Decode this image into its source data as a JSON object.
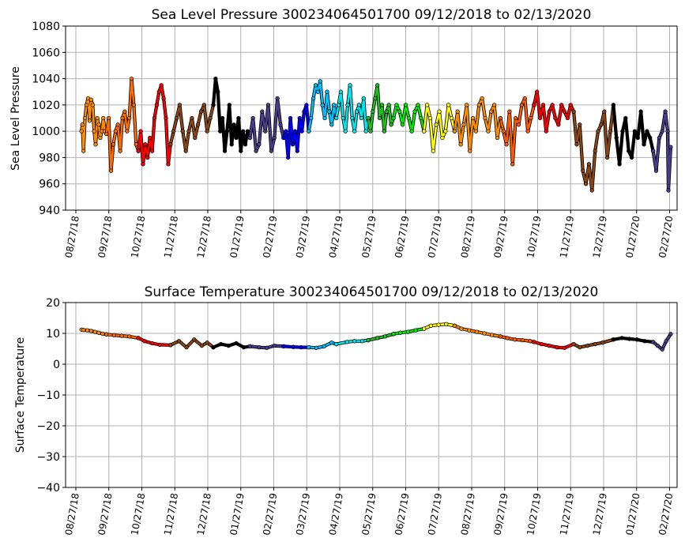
{
  "chart_data": [
    {
      "type": "scatter",
      "title": "Sea Level Pressure 300234064501700  09/12/2018 to 02/13/2020",
      "xlabel": "",
      "ylabel": "Sea Level Pressure",
      "ylim": [
        940,
        1080
      ],
      "yticks": [
        940,
        960,
        980,
        1000,
        1020,
        1040,
        1060,
        1080
      ],
      "xticks": [
        "08/27/18",
        "09/27/18",
        "10/27/18",
        "11/27/18",
        "12/27/18",
        "01/27/19",
        "02/27/19",
        "03/27/19",
        "04/27/19",
        "05/27/19",
        "06/27/19",
        "07/27/19",
        "08/27/19",
        "09/27/19",
        "10/27/19",
        "11/27/19",
        "12/27/19",
        "01/27/20",
        "02/27/20"
      ],
      "grid": true,
      "series": [
        {
          "color": "#ff8c00",
          "x": [
            0.75,
            0.85,
            1.0,
            1.2,
            1.4,
            1.6,
            1.8,
            2.0,
            2.2,
            2.4,
            2.6,
            2.8,
            3.0,
            3.2,
            3.4,
            3.6,
            3.8,
            4.0
          ],
          "y": [
            1000,
            1005,
            985,
            1010,
            1020,
            1025,
            1008,
            1024,
            1020,
            1000,
            990,
            1010,
            1005,
            995,
            1000,
            1010,
            1000,
            998
          ]
        },
        {
          "color": "#ff6a00",
          "x": [
            4.0,
            4.3,
            4.6,
            4.9,
            5.2,
            5.5,
            5.8,
            6.1,
            6.4,
            6.7,
            7.0,
            7.3,
            7.6,
            7.9,
            8.2
          ],
          "y": [
            998,
            1010,
            970,
            990,
            1000,
            1005,
            985,
            1010,
            1015,
            1000,
            1010,
            1040,
            1020,
            990,
            985
          ]
        },
        {
          "color": "#ff0000",
          "x": [
            8.2,
            8.5,
            8.8,
            9.1,
            9.4,
            9.7,
            10.0,
            10.3,
            10.6,
            10.9,
            11.2,
            11.5,
            11.8,
            12.1,
            12.4
          ],
          "y": [
            985,
            1000,
            975,
            990,
            980,
            995,
            985,
            1010,
            1020,
            1030,
            1035,
            1025,
            1010,
            975,
            990
          ]
        },
        {
          "color": "#8b4513",
          "x": [
            12.4,
            12.8,
            13.2,
            13.6,
            14.0,
            14.4,
            14.8,
            15.2,
            15.6,
            16.0,
            16.4,
            16.8,
            17.2,
            17.6,
            18.0
          ],
          "y": [
            990,
            1000,
            1010,
            1020,
            1000,
            985,
            1000,
            1010,
            995,
            1005,
            1015,
            1020,
            1000,
            1010,
            1020
          ]
        },
        {
          "color": "#000000",
          "x": [
            18.0,
            18.3,
            18.6,
            18.9,
            19.2,
            19.5,
            19.8,
            20.1,
            20.4,
            20.7,
            21.0,
            21.3,
            21.6,
            21.9,
            22.2,
            22.5,
            22.8
          ],
          "y": [
            1020,
            1040,
            1030,
            1000,
            1010,
            985,
            1000,
            1020,
            990,
            1005,
            995,
            1010,
            985,
            1000,
            990,
            1000,
            995
          ]
        },
        {
          "color": "#483d8b",
          "x": [
            22.8,
            23.2,
            23.6,
            24.0,
            24.4,
            24.8,
            25.2,
            25.6,
            26.0,
            26.4,
            26.8,
            27.2
          ],
          "y": [
            995,
            1010,
            985,
            990,
            1015,
            1000,
            1020,
            985,
            995,
            1025,
            1005,
            995
          ]
        },
        {
          "color": "#0000ff",
          "x": [
            27.2,
            27.5,
            27.8,
            28.1,
            28.4,
            28.7,
            29.0,
            29.3,
            29.6,
            29.9,
            30.2,
            30.5
          ],
          "y": [
            995,
            1000,
            980,
            1010,
            990,
            1000,
            985,
            1010,
            1000,
            1015,
            1020,
            1000
          ]
        },
        {
          "color": "#00bfff",
          "x": [
            30.5,
            30.8,
            31.1,
            31.4,
            31.7,
            32.0,
            32.3,
            32.6,
            32.9,
            33.2,
            33.5,
            33.8,
            34.1
          ],
          "y": [
            1000,
            1010,
            1025,
            1035,
            1030,
            1038,
            1020,
            1010,
            1030,
            1015,
            1005,
            1020,
            1010
          ]
        },
        {
          "color": "#00e5ee",
          "x": [
            34.1,
            34.4,
            34.7,
            35.0,
            35.3,
            35.6,
            35.9,
            36.2,
            36.5,
            36.8,
            37.1,
            37.4,
            37.7,
            38.0,
            38.3
          ],
          "y": [
            1010,
            1020,
            1030,
            1010,
            1000,
            1020,
            1035,
            1010,
            1000,
            1015,
            1020,
            1010,
            1025,
            1000,
            1010
          ]
        },
        {
          "color": "#22bb22",
          "x": [
            38.3,
            38.6,
            38.9,
            39.2,
            39.5,
            39.8,
            40.1,
            40.4,
            40.7,
            41.0,
            41.3,
            41.6
          ],
          "y": [
            1010,
            1000,
            1015,
            1025,
            1035,
            1010,
            1020,
            1000,
            1015,
            1020,
            1005,
            1010
          ]
        },
        {
          "color": "#00ee00",
          "x": [
            41.6,
            42.0,
            42.4,
            42.8,
            43.2,
            43.6,
            44.0,
            44.4,
            44.8,
            45.2,
            45.6
          ],
          "y": [
            1010,
            1020,
            1015,
            1005,
            1020,
            1010,
            1000,
            1015,
            1020,
            1010,
            1000
          ]
        },
        {
          "color": "#ffff00",
          "x": [
            45.6,
            46.0,
            46.4,
            46.8,
            47.2,
            47.6,
            48.0,
            48.4,
            48.8,
            49.2,
            49.6
          ],
          "y": [
            1000,
            1020,
            1010,
            985,
            1005,
            1015,
            995,
            1000,
            1020,
            1010,
            1000
          ]
        },
        {
          "color": "#ff8c00",
          "x": [
            49.6,
            50.0,
            50.4,
            50.8,
            51.2,
            51.6,
            52.0,
            52.4,
            52.8,
            53.2,
            53.6,
            54.0,
            54.4,
            54.8,
            55.2,
            55.6
          ],
          "y": [
            1000,
            1015,
            990,
            1005,
            1020,
            985,
            1010,
            1000,
            1020,
            1025,
            1010,
            1000,
            1015,
            1020,
            995,
            1010
          ]
        },
        {
          "color": "#ff5a00",
          "x": [
            55.6,
            56.0,
            56.4,
            56.8,
            57.2,
            57.6,
            58.0,
            58.4,
            58.8,
            59.2,
            59.6,
            60.0
          ],
          "y": [
            1010,
            1000,
            990,
            1015,
            975,
            1010,
            1005,
            1020,
            1025,
            1000,
            1010,
            1020
          ]
        },
        {
          "color": "#ff0000",
          "x": [
            60.0,
            60.4,
            60.8,
            61.2,
            61.6,
            62.0,
            62.4,
            62.8,
            63.2,
            63.6,
            64.0,
            64.4,
            64.8,
            65.2
          ],
          "y": [
            1020,
            1030,
            1010,
            1020,
            1000,
            1015,
            1020,
            1010,
            1005,
            1020,
            1015,
            1010,
            1020,
            1015
          ]
        },
        {
          "color": "#8b4513",
          "x": [
            65.2,
            65.6,
            66.0,
            66.4,
            66.8,
            67.2,
            67.6,
            68.0,
            68.4,
            68.8,
            69.2,
            69.6,
            70.0,
            70.4
          ],
          "y": [
            1015,
            990,
            1005,
            970,
            960,
            975,
            955,
            985,
            1000,
            1005,
            1015,
            980,
            1000,
            1020
          ]
        },
        {
          "color": "#000000",
          "x": [
            70.4,
            70.8,
            71.2,
            71.6,
            72.0,
            72.4,
            72.8,
            73.2,
            73.6,
            74.0,
            74.4,
            74.8,
            75.2,
            75.6
          ],
          "y": [
            1020,
            995,
            975,
            1000,
            1010,
            985,
            980,
            1000,
            995,
            1015,
            990,
            1000,
            995,
            985
          ]
        },
        {
          "color": "#483d8b",
          "x": [
            75.6,
            76.0,
            76.4,
            76.8,
            77.2,
            77.5,
            77.6,
            77.9
          ],
          "y": [
            985,
            970,
            995,
            1000,
            1015,
            1000,
            955,
            988
          ]
        }
      ]
    },
    {
      "type": "scatter",
      "title": "Surface Temperature 300234064501700  09/12/2018 to 02/13/2020",
      "xlabel": "",
      "ylabel": "Surface Temperature",
      "ylim": [
        -40,
        20
      ],
      "yticks": [
        -40,
        -30,
        -20,
        -10,
        0,
        10,
        20
      ],
      "xticks": [
        "08/27/18",
        "09/27/18",
        "10/27/18",
        "11/27/18",
        "12/27/18",
        "01/27/19",
        "02/27/19",
        "03/27/19",
        "04/27/19",
        "05/27/19",
        "06/27/19",
        "07/27/19",
        "08/27/19",
        "09/27/19",
        "10/27/19",
        "11/27/19",
        "12/27/19",
        "01/27/20",
        "02/27/20"
      ],
      "grid": true,
      "series": [
        {
          "color": "#ff8c00",
          "x": [
            0.75,
            1.0,
            1.5,
            2.0,
            2.5,
            3.0,
            3.5,
            4.0
          ],
          "y": [
            11.2,
            11.1,
            11.0,
            10.8,
            10.5,
            10.2,
            9.9,
            9.7
          ]
        },
        {
          "color": "#ff6a00",
          "x": [
            4.0,
            5.0,
            6.0,
            7.0,
            8.2
          ],
          "y": [
            9.7,
            9.4,
            9.2,
            9.0,
            8.5
          ]
        },
        {
          "color": "#ff0000",
          "x": [
            8.2,
            9.0,
            10.0,
            11.0,
            12.4
          ],
          "y": [
            8.5,
            7.5,
            6.8,
            6.3,
            6.2
          ]
        },
        {
          "color": "#8b4513",
          "x": [
            12.4,
            13.5,
            14.5,
            15.5,
            16.5,
            17.2,
            18.0
          ],
          "y": [
            6.2,
            7.5,
            5.5,
            8.0,
            6.0,
            7.0,
            5.5
          ]
        },
        {
          "color": "#000000",
          "x": [
            18.0,
            19.0,
            20.0,
            21.0,
            22.0,
            22.8
          ],
          "y": [
            5.5,
            6.5,
            6.0,
            6.8,
            5.5,
            5.8
          ]
        },
        {
          "color": "#483d8b",
          "x": [
            22.8,
            24.0,
            25.0,
            26.0,
            27.2
          ],
          "y": [
            5.8,
            5.5,
            5.3,
            6.0,
            5.8
          ]
        },
        {
          "color": "#0000ff",
          "x": [
            27.2,
            28.5,
            29.5,
            30.5
          ],
          "y": [
            5.8,
            5.6,
            5.5,
            5.5
          ]
        },
        {
          "color": "#00bfff",
          "x": [
            30.5,
            31.5,
            32.5,
            33.5,
            34.1
          ],
          "y": [
            5.5,
            5.3,
            5.8,
            7.0,
            6.5
          ]
        },
        {
          "color": "#00e5ee",
          "x": [
            34.1,
            35.5,
            36.5,
            37.5,
            38.3
          ],
          "y": [
            6.5,
            7.2,
            7.5,
            7.5,
            7.8
          ]
        },
        {
          "color": "#22bb22",
          "x": [
            38.3,
            39.5,
            40.5,
            41.6
          ],
          "y": [
            7.8,
            8.5,
            9.0,
            9.8
          ]
        },
        {
          "color": "#00ee00",
          "x": [
            41.6,
            42.5,
            43.5,
            44.5,
            45.6
          ],
          "y": [
            9.8,
            10.2,
            10.5,
            11.0,
            11.5
          ]
        },
        {
          "color": "#ffff00",
          "x": [
            45.6,
            46.5,
            47.5,
            48.5,
            49.6
          ],
          "y": [
            11.5,
            12.5,
            12.8,
            13.0,
            12.5
          ]
        },
        {
          "color": "#ff8c00",
          "x": [
            49.6,
            50.5,
            51.5,
            52.5,
            53.5,
            54.5,
            55.6
          ],
          "y": [
            12.5,
            11.5,
            11.0,
            10.5,
            10.0,
            9.5,
            9.0
          ]
        },
        {
          "color": "#ff5a00",
          "x": [
            55.6,
            56.5,
            57.5,
            58.5,
            59.5,
            60.0
          ],
          "y": [
            9.0,
            8.5,
            8.0,
            7.8,
            7.5,
            7.2
          ]
        },
        {
          "color": "#ff0000",
          "x": [
            60.0,
            61.0,
            62.0,
            63.0,
            64.0,
            65.2
          ],
          "y": [
            7.2,
            6.5,
            6.0,
            5.5,
            5.3,
            6.5
          ]
        },
        {
          "color": "#8b4513",
          "x": [
            65.2,
            66.0,
            67.0,
            68.0,
            69.0,
            70.4
          ],
          "y": [
            6.5,
            5.5,
            6.0,
            6.5,
            7.0,
            8.0
          ]
        },
        {
          "color": "#000000",
          "x": [
            70.4,
            71.5,
            72.5,
            73.5,
            74.5,
            75.6
          ],
          "y": [
            8.0,
            8.5,
            8.2,
            8.0,
            7.5,
            7.2
          ]
        },
        {
          "color": "#483d8b",
          "x": [
            75.6,
            76.2,
            76.8,
            77.3,
            77.9
          ],
          "y": [
            7.2,
            6.0,
            4.8,
            7.5,
            9.8
          ]
        }
      ]
    }
  ]
}
